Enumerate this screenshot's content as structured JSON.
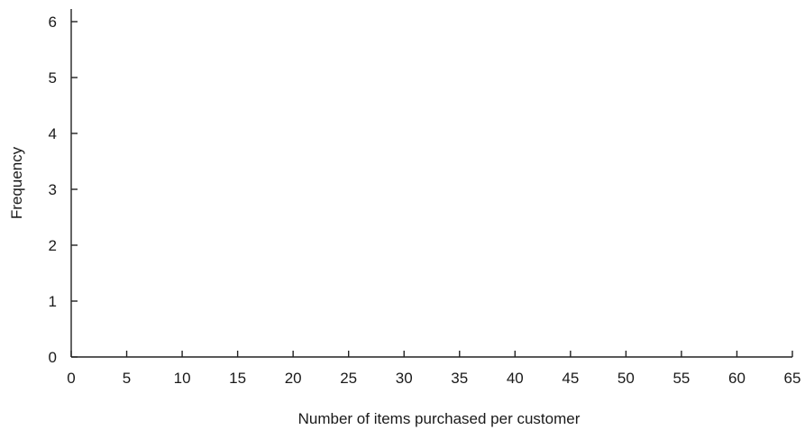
{
  "chart_data": {
    "type": "bar",
    "title": "",
    "xlabel": "Number of items purchased per customer",
    "ylabel": "Frequency",
    "x_ticks": [
      0,
      5,
      10,
      15,
      20,
      25,
      30,
      35,
      40,
      45,
      50,
      55,
      60,
      65
    ],
    "y_ticks": [
      0,
      1,
      2,
      3,
      4,
      5,
      6
    ],
    "xlim": [
      0,
      65
    ],
    "ylim": [
      0,
      6
    ],
    "grid": false,
    "series": []
  }
}
